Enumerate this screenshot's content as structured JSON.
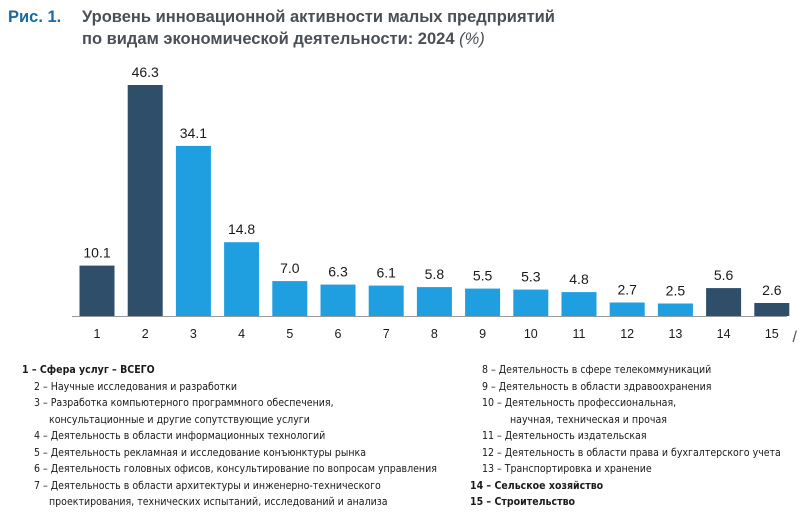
{
  "title": {
    "fig_label": "Рис. 1.",
    "line1": "Уровень инновационной активности малых предприятий",
    "line2": "по видам экономической деятельности: 2024",
    "units": "(%)"
  },
  "colors": {
    "dark": "#2e4e69",
    "light": "#1f9ee0",
    "title_accent": "#1b6aa0",
    "axis": "#9a9a9a"
  },
  "chart_data": {
    "type": "bar",
    "categories": [
      "1",
      "2",
      "3",
      "4",
      "5",
      "6",
      "7",
      "8",
      "9",
      "10",
      "11",
      "12",
      "13",
      "14",
      "15"
    ],
    "values": [
      10.1,
      46.3,
      34.1,
      14.8,
      7.0,
      6.3,
      6.1,
      5.8,
      5.5,
      5.3,
      4.8,
      2.7,
      2.5,
      5.6,
      2.6
    ],
    "value_labels": [
      "10.1",
      "46.3",
      "34.1",
      "14.8",
      "7.0",
      "6.3",
      "6.1",
      "5.8",
      "5.5",
      "5.3",
      "4.8",
      "2.7",
      "2.5",
      "5.6",
      "2.6"
    ],
    "highlight": [
      "dark",
      "dark",
      "light",
      "light",
      "light",
      "light",
      "light",
      "light",
      "light",
      "light",
      "light",
      "light",
      "light",
      "dark",
      "dark"
    ],
    "title": "Уровень инновационной активности малых предприятий по видам экономической деятельности: 2024 (%)",
    "xlabel": "",
    "ylabel": "",
    "ylim": [
      0,
      47
    ],
    "grid": false,
    "axis_end_mark": "/"
  },
  "legend": {
    "left": [
      {
        "text": "1 – Сфера услуг – ВСЕГО",
        "bold": true,
        "indent": false
      },
      {
        "text": "2 – Научные исследования и разработки",
        "bold": false,
        "indent": true
      },
      {
        "text": "3 – Разработка компьютерного программного обеспечения,",
        "bold": false,
        "indent": true,
        "cont": "консультационные и другие сопутствующие услуги"
      },
      {
        "text": "4 – Деятельность в области информационных технологий",
        "bold": false,
        "indent": true
      },
      {
        "text": "5 – Деятельность рекламная и исследование конъюнктуры рынка",
        "bold": false,
        "indent": true
      },
      {
        "text": "6 – Деятельность головных офисов, консультирование по вопросам управления",
        "bold": false,
        "indent": true
      },
      {
        "text": "7 – Деятельность в области архитектуры и инженерно-технического",
        "bold": false,
        "indent": true,
        "cont": "проектирования, технических испытаний, исследований и анализа"
      }
    ],
    "right": [
      {
        "text": "8 – Деятельность в сфере телекоммуникаций",
        "bold": false,
        "indent": true
      },
      {
        "text": "9 – Деятельность в области здравоохранения",
        "bold": false,
        "indent": true
      },
      {
        "text": "10 – Деятельность профессиональная,",
        "bold": false,
        "indent": true,
        "cont": "научная, техническая и прочая"
      },
      {
        "text": "11 – Деятельность издательская",
        "bold": false,
        "indent": true
      },
      {
        "text": "12 – Деятельность в области права и бухгалтерского учета",
        "bold": false,
        "indent": true
      },
      {
        "text": "13 – Транспортировка и хранение",
        "bold": false,
        "indent": true
      },
      {
        "text": "14 – Сельское хозяйство",
        "bold": true,
        "indent": false
      },
      {
        "text": "15 – Строительство",
        "bold": true,
        "indent": false
      }
    ]
  }
}
